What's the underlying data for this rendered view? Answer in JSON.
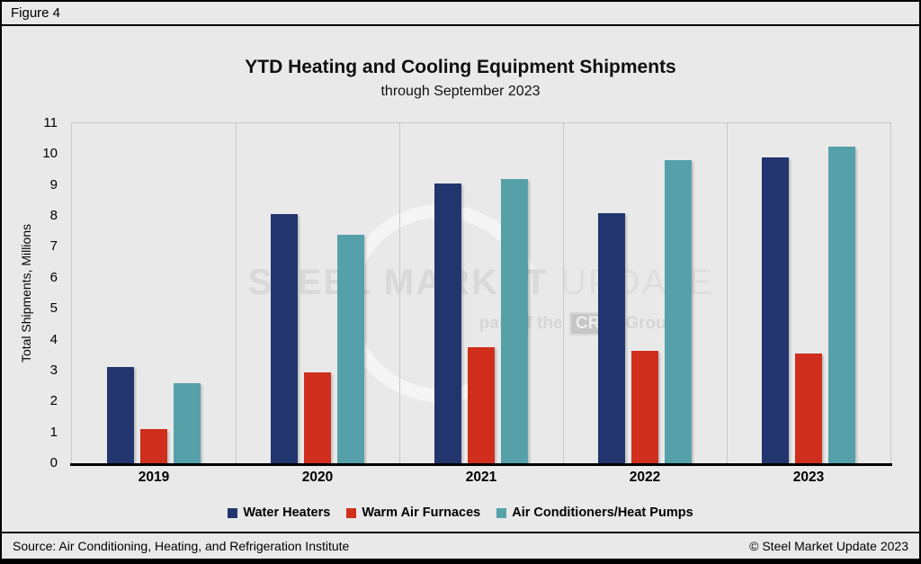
{
  "figure_label": "Figure 4",
  "chart_data": {
    "type": "bar",
    "title": "YTD Heating and Cooling Equipment Shipments",
    "subtitle": "through September 2023",
    "ylabel": "Total Shipments, Millions",
    "xlabel": "",
    "ylim": [
      0,
      11
    ],
    "ytick_step": 1,
    "grid": "vertical-group-separators",
    "legend_position": "bottom",
    "categories": [
      "2019",
      "2020",
      "2021",
      "2022",
      "2023"
    ],
    "series": [
      {
        "name": "Water Heaters",
        "color": "#22356e",
        "values": [
          3.1,
          8.05,
          9.05,
          8.1,
          9.9
        ]
      },
      {
        "name": "Warm Air Furnaces",
        "color": "#d02f1e",
        "values": [
          1.1,
          2.95,
          3.75,
          3.65,
          3.55
        ]
      },
      {
        "name": "Air Conditioners/Heat Pumps",
        "color": "#56a1a9",
        "values": [
          2.6,
          7.4,
          9.2,
          9.8,
          10.25
        ]
      }
    ]
  },
  "watermark": {
    "line1_bold": "STEEL MARKET",
    "line1_light": "UPDATE",
    "line2_prefix": "part of the",
    "line2_box": "CRU",
    "line2_suffix": "Group"
  },
  "footer": {
    "source": "Source: Air Conditioning, Heating, and Refrigeration Institute",
    "copyright": "© Steel Market Update 2023"
  }
}
